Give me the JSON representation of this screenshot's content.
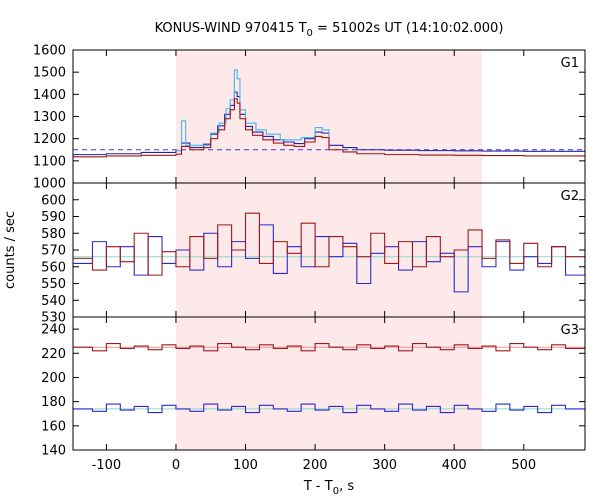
{
  "chart_data": {
    "type": "line",
    "title_main": "KONUS-WIND 970415 T",
    "title_sub": "0",
    "title_rest": " = 51002s UT (14:10:02.000)",
    "xlabel_main": "T - T",
    "xlabel_sub": "0",
    "xlabel_rest": ", s",
    "ylabel": "counts / sec",
    "xlim": [
      -148,
      588
    ],
    "x_ticks": [
      -100,
      0,
      100,
      200,
      300,
      400,
      500
    ],
    "x_tick_labels": [
      "-100",
      "0",
      "100",
      "200",
      "300",
      "400",
      "500"
    ],
    "highlight_interval": [
      0,
      440
    ],
    "highlight_color": "#fde9ea",
    "panels": [
      {
        "label": "G1",
        "ylim": [
          1000,
          1600
        ],
        "y_ticks": [
          1000,
          1100,
          1200,
          1300,
          1400,
          1500,
          1600
        ],
        "y_tick_labels": [
          "1000",
          "1100",
          "1200",
          "1300",
          "1400",
          "1500",
          "1600"
        ],
        "background_level": 1150,
        "background_color": "#3a3acc",
        "series": [
          {
            "color": "#2222aa",
            "points": [
              [
                -148,
                1128
              ],
              [
                -100,
                1132
              ],
              [
                -50,
                1138
              ],
              [
                0,
                1146
              ],
              [
                8,
                1180
              ],
              [
                20,
                1160
              ],
              [
                40,
                1175
              ],
              [
                50,
                1220
              ],
              [
                60,
                1258
              ],
              [
                70,
                1310
              ],
              [
                78,
                1350
              ],
              [
                84,
                1410
              ],
              [
                88,
                1390
              ],
              [
                92,
                1310
              ],
              [
                100,
                1255
              ],
              [
                110,
                1230
              ],
              [
                125,
                1210
              ],
              [
                140,
                1195
              ],
              [
                155,
                1185
              ],
              [
                170,
                1178
              ],
              [
                185,
                1200
              ],
              [
                200,
                1230
              ],
              [
                210,
                1225
              ],
              [
                220,
                1170
              ],
              [
                240,
                1160
              ],
              [
                260,
                1150
              ],
              [
                300,
                1148
              ],
              [
                350,
                1146
              ],
              [
                400,
                1145
              ],
              [
                440,
                1144
              ],
              [
                500,
                1143
              ],
              [
                588,
                1142
              ]
            ]
          },
          {
            "color": "#44b8e8",
            "points": [
              [
                0,
                1146
              ],
              [
                8,
                1280
              ],
              [
                14,
                1170
              ],
              [
                50,
                1225
              ],
              [
                62,
                1270
              ],
              [
                72,
                1335
              ],
              [
                78,
                1375
              ],
              [
                84,
                1510
              ],
              [
                88,
                1470
              ],
              [
                92,
                1330
              ],
              [
                100,
                1270
              ],
              [
                115,
                1240
              ],
              [
                130,
                1220
              ],
              [
                150,
                1195
              ],
              [
                180,
                1205
              ],
              [
                200,
                1250
              ],
              [
                210,
                1240
              ],
              [
                220,
                1165
              ]
            ]
          },
          {
            "color": "#a01818",
            "points": [
              [
                -148,
                1118
              ],
              [
                -100,
                1122
              ],
              [
                -50,
                1125
              ],
              [
                0,
                1130
              ],
              [
                8,
                1165
              ],
              [
                20,
                1150
              ],
              [
                40,
                1160
              ],
              [
                50,
                1200
              ],
              [
                60,
                1240
              ],
              [
                70,
                1290
              ],
              [
                78,
                1330
              ],
              [
                84,
                1380
              ],
              [
                88,
                1360
              ],
              [
                92,
                1290
              ],
              [
                100,
                1240
              ],
              [
                110,
                1215
              ],
              [
                125,
                1195
              ],
              [
                140,
                1180
              ],
              [
                155,
                1170
              ],
              [
                170,
                1165
              ],
              [
                185,
                1185
              ],
              [
                200,
                1210
              ],
              [
                210,
                1205
              ],
              [
                220,
                1150
              ],
              [
                240,
                1140
              ],
              [
                260,
                1132
              ],
              [
                300,
                1128
              ],
              [
                350,
                1126
              ],
              [
                400,
                1125
              ],
              [
                440,
                1124
              ],
              [
                500,
                1122
              ],
              [
                588,
                1120
              ]
            ]
          }
        ]
      },
      {
        "label": "G2",
        "ylim": [
          530,
          610
        ],
        "y_ticks": [
          530,
          540,
          550,
          560,
          570,
          580,
          590,
          600
        ],
        "y_tick_labels": [
          "530",
          "540",
          "550",
          "560",
          "570",
          "580",
          "590",
          "600"
        ],
        "background_level": 566,
        "background_color": "#8fd8c8",
        "series": [
          {
            "color": "#2a2acc",
            "points": [
              [
                -148,
                562
              ],
              [
                -120,
                575
              ],
              [
                -100,
                560
              ],
              [
                -80,
                572
              ],
              [
                -60,
                555
              ],
              [
                -40,
                578
              ],
              [
                -20,
                562
              ],
              [
                0,
                570
              ],
              [
                20,
                558
              ],
              [
                40,
                580
              ],
              [
                60,
                560
              ],
              [
                80,
                575
              ],
              [
                100,
                565
              ],
              [
                120,
                585
              ],
              [
                140,
                556
              ],
              [
                160,
                572
              ],
              [
                180,
                560
              ],
              [
                200,
                578
              ],
              [
                220,
                566
              ],
              [
                240,
                574
              ],
              [
                260,
                550
              ],
              [
                280,
                568
              ],
              [
                300,
                572
              ],
              [
                320,
                558
              ],
              [
                340,
                575
              ],
              [
                360,
                563
              ],
              [
                380,
                568
              ],
              [
                400,
                545
              ],
              [
                420,
                572
              ],
              [
                440,
                560
              ],
              [
                460,
                575
              ],
              [
                480,
                558
              ],
              [
                500,
                566
              ],
              [
                520,
                562
              ],
              [
                540,
                572
              ],
              [
                560,
                555
              ],
              [
                588,
                570
              ]
            ]
          },
          {
            "color": "#a01818",
            "points": [
              [
                -148,
                565
              ],
              [
                -120,
                558
              ],
              [
                -100,
                572
              ],
              [
                -80,
                563
              ],
              [
                -60,
                580
              ],
              [
                -40,
                555
              ],
              [
                -20,
                569
              ],
              [
                0,
                560
              ],
              [
                20,
                578
              ],
              [
                40,
                565
              ],
              [
                60,
                585
              ],
              [
                80,
                570
              ],
              [
                100,
                592
              ],
              [
                120,
                562
              ],
              [
                140,
                575
              ],
              [
                160,
                568
              ],
              [
                180,
                586
              ],
              [
                200,
                560
              ],
              [
                220,
                578
              ],
              [
                240,
                572
              ],
              [
                260,
                566
              ],
              [
                280,
                580
              ],
              [
                300,
                562
              ],
              [
                320,
                575
              ],
              [
                340,
                560
              ],
              [
                360,
                578
              ],
              [
                380,
                566
              ],
              [
                400,
                570
              ],
              [
                420,
                582
              ],
              [
                440,
                565
              ],
              [
                460,
                576
              ],
              [
                480,
                562
              ],
              [
                500,
                574
              ],
              [
                520,
                560
              ],
              [
                540,
                572
              ],
              [
                560,
                566
              ],
              [
                588,
                565
              ]
            ]
          }
        ]
      },
      {
        "label": "G3",
        "ylim": [
          140,
          250
        ],
        "y_ticks": [
          140,
          160,
          180,
          200,
          220,
          240
        ],
        "y_tick_labels": [
          "140",
          "160",
          "180",
          "200",
          "220",
          "240"
        ],
        "background_level": 225,
        "background_color": "#e89898",
        "background_level_2": 174,
        "background_color_2": "#8fd8c8",
        "series": [
          {
            "color": "#a01818",
            "points": [
              [
                -148,
                225
              ],
              [
                -120,
                222
              ],
              [
                -100,
                228
              ],
              [
                -80,
                224
              ],
              [
                -60,
                226
              ],
              [
                -40,
                223
              ],
              [
                -20,
                227
              ],
              [
                0,
                224
              ],
              [
                20,
                226
              ],
              [
                40,
                222
              ],
              [
                60,
                228
              ],
              [
                80,
                225
              ],
              [
                100,
                223
              ],
              [
                120,
                227
              ],
              [
                140,
                224
              ],
              [
                160,
                226
              ],
              [
                180,
                222
              ],
              [
                200,
                228
              ],
              [
                220,
                225
              ],
              [
                240,
                223
              ],
              [
                260,
                227
              ],
              [
                280,
                224
              ],
              [
                300,
                226
              ],
              [
                320,
                222
              ],
              [
                340,
                228
              ],
              [
                360,
                225
              ],
              [
                380,
                223
              ],
              [
                400,
                227
              ],
              [
                420,
                224
              ],
              [
                440,
                226
              ],
              [
                460,
                222
              ],
              [
                480,
                228
              ],
              [
                500,
                225
              ],
              [
                520,
                223
              ],
              [
                540,
                227
              ],
              [
                560,
                224
              ],
              [
                588,
                226
              ]
            ]
          },
          {
            "color": "#2a2acc",
            "points": [
              [
                -148,
                174
              ],
              [
                -120,
                172
              ],
              [
                -100,
                178
              ],
              [
                -80,
                173
              ],
              [
                -60,
                176
              ],
              [
                -40,
                171
              ],
              [
                -20,
                177
              ],
              [
                0,
                174
              ],
              [
                20,
                172
              ],
              [
                40,
                178
              ],
              [
                60,
                173
              ],
              [
                80,
                176
              ],
              [
                100,
                171
              ],
              [
                120,
                177
              ],
              [
                140,
                174
              ],
              [
                160,
                172
              ],
              [
                180,
                178
              ],
              [
                200,
                173
              ],
              [
                220,
                176
              ],
              [
                240,
                171
              ],
              [
                260,
                177
              ],
              [
                280,
                174
              ],
              [
                300,
                172
              ],
              [
                320,
                178
              ],
              [
                340,
                173
              ],
              [
                360,
                176
              ],
              [
                380,
                171
              ],
              [
                400,
                177
              ],
              [
                420,
                174
              ],
              [
                440,
                172
              ],
              [
                460,
                178
              ],
              [
                480,
                173
              ],
              [
                500,
                176
              ],
              [
                520,
                171
              ],
              [
                540,
                177
              ],
              [
                560,
                174
              ],
              [
                588,
                172
              ]
            ]
          }
        ]
      }
    ]
  }
}
